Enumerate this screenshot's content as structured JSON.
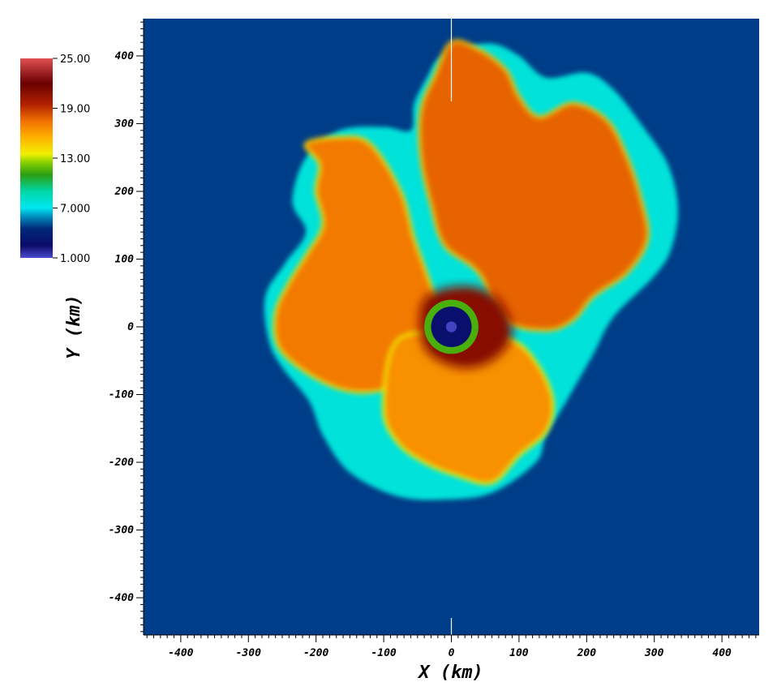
{
  "chart_data": {
    "type": "heatmap",
    "xlabel": "X (km)",
    "ylabel": "Y (km)",
    "xlim": [
      -455,
      455
    ],
    "ylim": [
      -455,
      455
    ],
    "x_ticks": [
      -400,
      -300,
      -200,
      -100,
      0,
      100,
      200,
      300,
      400
    ],
    "y_ticks": [
      -400,
      -300,
      -200,
      -100,
      0,
      100,
      200,
      300,
      400
    ],
    "x_tick_labels": [
      "-400",
      "-300",
      "-200",
      "-100",
      "0",
      "100",
      "200",
      "300",
      "400"
    ],
    "y_tick_labels": [
      "-400",
      "-300",
      "-200",
      "-100",
      "0",
      "100",
      "200",
      "300",
      "400"
    ],
    "colorbar": {
      "min": 1.0,
      "max": 25.0,
      "ticks": [
        25.0,
        19.0,
        13.0,
        7.0,
        1.0
      ],
      "tick_labels": [
        "25.00",
        "19.00",
        "13.00",
        "7.000",
        "1.000"
      ],
      "colormap": [
        [
          1,
          "#4a4acf"
        ],
        [
          2.5,
          "#0b0b6a"
        ],
        [
          4.5,
          "#00287a"
        ],
        [
          6,
          "#0090c0"
        ],
        [
          7,
          "#00e6f0"
        ],
        [
          9,
          "#00d8a8"
        ],
        [
          11,
          "#2a9e10"
        ],
        [
          12.5,
          "#8ad000"
        ],
        [
          13.5,
          "#f0f000"
        ],
        [
          15.5,
          "#ffb000"
        ],
        [
          17.5,
          "#f07000"
        ],
        [
          19.5,
          "#b02000"
        ],
        [
          22,
          "#6a0000"
        ],
        [
          25,
          "#e05050"
        ]
      ]
    },
    "background_value": 4.8,
    "field_regions": [
      {
        "name": "ejecta-shell",
        "value": 7.6,
        "outline_km": [
          [
            -20,
            395
          ],
          [
            10,
            410
          ],
          [
            60,
            418
          ],
          [
            100,
            400
          ],
          [
            140,
            368
          ],
          [
            200,
            375
          ],
          [
            240,
            350
          ],
          [
            280,
            300
          ],
          [
            320,
            240
          ],
          [
            335,
            175
          ],
          [
            325,
            115
          ],
          [
            300,
            75
          ],
          [
            240,
            15
          ],
          [
            210,
            -40
          ],
          [
            170,
            -110
          ],
          [
            140,
            -160
          ],
          [
            125,
            -200
          ],
          [
            60,
            -245
          ],
          [
            -10,
            -255
          ],
          [
            -80,
            -250
          ],
          [
            -150,
            -215
          ],
          [
            -190,
            -160
          ],
          [
            -210,
            -110
          ],
          [
            -250,
            -60
          ],
          [
            -270,
            -20
          ],
          [
            -275,
            45
          ],
          [
            -245,
            95
          ],
          [
            -215,
            140
          ],
          [
            -235,
            185
          ],
          [
            -215,
            250
          ],
          [
            -165,
            290
          ],
          [
            -100,
            295
          ],
          [
            -60,
            290
          ],
          [
            -55,
            330
          ],
          [
            -35,
            370
          ]
        ]
      },
      {
        "name": "hot-bubble-north",
        "value": 17.8,
        "outline_km": [
          [
            0,
            420
          ],
          [
            40,
            410
          ],
          [
            80,
            380
          ],
          [
            100,
            340
          ],
          [
            130,
            310
          ],
          [
            180,
            330
          ],
          [
            230,
            305
          ],
          [
            260,
            250
          ],
          [
            280,
            190
          ],
          [
            290,
            130
          ],
          [
            260,
            80
          ],
          [
            210,
            45
          ],
          [
            180,
            10
          ],
          [
            140,
            -5
          ],
          [
            80,
            10
          ],
          [
            40,
            80
          ],
          [
            -10,
            120
          ],
          [
            -30,
            180
          ],
          [
            -45,
            250
          ],
          [
            -45,
            320
          ],
          [
            -25,
            370
          ]
        ]
      },
      {
        "name": "hot-bubble-west",
        "value": 17.2,
        "outline_km": [
          [
            -215,
            270
          ],
          [
            -165,
            280
          ],
          [
            -120,
            270
          ],
          [
            -75,
            200
          ],
          [
            -55,
            130
          ],
          [
            -30,
            60
          ],
          [
            -10,
            -10
          ],
          [
            -40,
            -60
          ],
          [
            -90,
            -90
          ],
          [
            -150,
            -95
          ],
          [
            -210,
            -70
          ],
          [
            -255,
            -30
          ],
          [
            -260,
            20
          ],
          [
            -240,
            65
          ],
          [
            -215,
            105
          ],
          [
            -190,
            150
          ],
          [
            -200,
            200
          ],
          [
            -195,
            240
          ]
        ]
      },
      {
        "name": "hot-plume-south",
        "value": 16.5,
        "outline_km": [
          [
            -80,
            -20
          ],
          [
            10,
            -10
          ],
          [
            90,
            -20
          ],
          [
            130,
            -60
          ],
          [
            150,
            -110
          ],
          [
            140,
            -155
          ],
          [
            100,
            -190
          ],
          [
            60,
            -230
          ],
          [
            10,
            -220
          ],
          [
            -40,
            -200
          ],
          [
            -80,
            -170
          ],
          [
            -100,
            -120
          ]
        ]
      },
      {
        "name": "core-hot-spot",
        "value": 21.0,
        "outline_km": [
          [
            -40,
            40
          ],
          [
            20,
            60
          ],
          [
            70,
            40
          ],
          [
            90,
            -10
          ],
          [
            60,
            -50
          ],
          [
            10,
            -60
          ],
          [
            -40,
            -30
          ]
        ]
      },
      {
        "name": "proto-neutron-star-ring",
        "value": 11.5,
        "center_km": [
          0,
          0
        ],
        "radius_km": 40
      },
      {
        "name": "proto-neutron-star",
        "value": 2.8,
        "center_km": [
          0,
          0
        ],
        "radius_km": 30
      }
    ]
  }
}
